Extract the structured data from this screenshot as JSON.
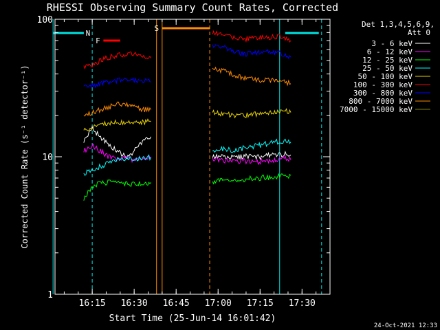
{
  "chart_data": {
    "type": "line",
    "title": "RHESSI Observing Summary Count Rates, Corrected",
    "xlabel": "Start Time (25-Jun-14 16:01:42)",
    "ylabel": "Corrected Count Rate (s⁻¹ detector⁻¹)",
    "y_scale": "log",
    "ylim": [
      1,
      100
    ],
    "xlim": [
      "16:01:42",
      "17:40:00"
    ],
    "x_ticks": [
      "16:15",
      "16:30",
      "16:45",
      "17:00",
      "17:15",
      "17:30"
    ],
    "y_ticks": [
      "1",
      "10",
      "100"
    ],
    "grid": false,
    "legend_position": "top-right",
    "legend_header": [
      "Det 1,3,4,5,6,9,",
      "Att 0"
    ],
    "timestamp": "24-Oct-2021 12:33",
    "flags": [
      {
        "label": "N",
        "color": "#00e5e5",
        "intervals": [
          [
            "16:01",
            "16:12"
          ],
          [
            "17:24",
            "17:36"
          ]
        ]
      },
      {
        "label": "F",
        "color": "#ff0000",
        "intervals": [
          [
            "16:19",
            "16:25"
          ]
        ]
      },
      {
        "label": "S",
        "color": "#ff8c00",
        "intervals": [
          [
            "16:40",
            "16:57"
          ]
        ]
      }
    ],
    "vlines": [
      {
        "time": "16:01",
        "color": "#00e5e5",
        "style": "solid"
      },
      {
        "time": "16:15",
        "color": "#00e5e5",
        "style": "dashed"
      },
      {
        "time": "16:38",
        "color": "#ff8c00",
        "style": "solid"
      },
      {
        "time": "16:40",
        "color": "#ff8c00",
        "style": "solid"
      },
      {
        "time": "16:57",
        "color": "#ff8c00",
        "style": "dashed"
      },
      {
        "time": "17:22",
        "color": "#00e5e5",
        "style": "solid"
      },
      {
        "time": "17:37",
        "color": "#00e5e5",
        "style": "dashed"
      }
    ],
    "series": [
      {
        "name": "3 - 6 keV",
        "color": "#ffffff",
        "segments": [
          {
            "x": [
              "16:12",
              "16:15",
              "16:18",
              "16:21",
              "16:24",
              "16:27",
              "16:30",
              "16:33",
              "16:36"
            ],
            "y": [
              13,
              16,
              14,
              12,
              11,
              10,
              11,
              13,
              14
            ]
          },
          {
            "x": [
              "16:58",
              "17:02",
              "17:06",
              "17:10",
              "17:14",
              "17:18",
              "17:22",
              "17:24",
              "17:26"
            ],
            "y": [
              10,
              10,
              9.8,
              10.2,
              9.9,
              10.2,
              10.3,
              10.6,
              10.3
            ]
          }
        ]
      },
      {
        "name": "6 - 12 keV",
        "color": "#ff00ff",
        "segments": [
          {
            "x": [
              "16:12",
              "16:15",
              "16:18",
              "16:21",
              "16:24",
              "16:27",
              "16:30",
              "16:33",
              "16:36"
            ],
            "y": [
              11,
              12,
              11,
              10,
              9.5,
              9.8,
              9.5,
              9.6,
              10
            ]
          },
          {
            "x": [
              "16:58",
              "17:02",
              "17:06",
              "17:10",
              "17:14",
              "17:18",
              "17:22",
              "17:24",
              "17:26"
            ],
            "y": [
              9.5,
              9.4,
              9.2,
              9.3,
              9.2,
              9.4,
              9.5,
              9.8,
              9.5
            ]
          }
        ]
      },
      {
        "name": "12 - 25 keV",
        "color": "#00ff00",
        "segments": [
          {
            "x": [
              "16:12",
              "16:15",
              "16:18",
              "16:21",
              "16:24",
              "16:27",
              "16:30",
              "16:33",
              "16:36"
            ],
            "y": [
              5,
              6,
              6.5,
              6.5,
              6.4,
              6.4,
              6.3,
              6.4,
              6.5
            ]
          },
          {
            "x": [
              "16:58",
              "17:02",
              "17:06",
              "17:10",
              "17:14",
              "17:18",
              "17:22",
              "17:24",
              "17:26"
            ],
            "y": [
              6.6,
              6.7,
              6.6,
              6.9,
              7,
              7.1,
              7.2,
              7.2,
              7.3
            ]
          }
        ]
      },
      {
        "name": "25 - 50 keV",
        "color": "#00ffff",
        "segments": [
          {
            "x": [
              "16:12",
              "16:15",
              "16:18",
              "16:21",
              "16:24",
              "16:27",
              "16:30",
              "16:33",
              "16:36"
            ],
            "y": [
              7.5,
              8,
              8.5,
              9,
              9.5,
              9.6,
              9.7,
              9.8,
              9.9
            ]
          },
          {
            "x": [
              "16:58",
              "17:02",
              "17:06",
              "17:10",
              "17:14",
              "17:18",
              "17:22",
              "17:24",
              "17:26"
            ],
            "y": [
              11,
              11.5,
              11,
              11.8,
              12,
              12.5,
              13,
              13.2,
              12.8
            ]
          }
        ]
      },
      {
        "name": "50 - 100 keV",
        "color": "#e5d000",
        "segments": [
          {
            "x": [
              "16:12",
              "16:15",
              "16:18",
              "16:21",
              "16:24",
              "16:27",
              "16:30",
              "16:33",
              "16:36"
            ],
            "y": [
              15.5,
              16.5,
              17,
              17.5,
              17.8,
              18,
              18,
              18,
              18
            ]
          },
          {
            "x": [
              "16:58",
              "17:02",
              "17:06",
              "17:10",
              "17:14",
              "17:18",
              "17:22",
              "17:24",
              "17:26"
            ],
            "y": [
              21,
              20.5,
              20,
              20,
              20.5,
              21,
              21.5,
              21.5,
              21
            ]
          }
        ]
      },
      {
        "name": "100 - 300 keV",
        "color": "#ff0000",
        "segments": [
          {
            "x": [
              "16:12",
              "16:15",
              "16:18",
              "16:21",
              "16:24",
              "16:27",
              "16:30",
              "16:33",
              "16:36"
            ],
            "y": [
              45,
              47,
              50,
              53,
              55,
              56,
              56,
              53,
              52
            ]
          },
          {
            "x": [
              "16:58",
              "17:02",
              "17:06",
              "17:10",
              "17:14",
              "17:18",
              "17:22",
              "17:24",
              "17:26"
            ],
            "y": [
              80,
              76,
              73,
              72,
              73,
              74,
              75,
              72,
              70
            ]
          }
        ]
      },
      {
        "name": "300 - 800 keV",
        "color": "#0000ff",
        "segments": [
          {
            "x": [
              "16:12",
              "16:15",
              "16:18",
              "16:21",
              "16:24",
              "16:27",
              "16:30",
              "16:33",
              "16:36"
            ],
            "y": [
              32,
              33,
              34,
              35,
              36,
              36,
              36,
              36,
              35
            ]
          },
          {
            "x": [
              "16:58",
              "17:02",
              "17:06",
              "17:10",
              "17:14",
              "17:18",
              "17:22",
              "17:24",
              "17:26"
            ],
            "y": [
              65,
              62,
              58,
              56,
              57,
              58,
              57,
              55,
              53
            ]
          }
        ]
      },
      {
        "name": "800 - 7000 keV",
        "color": "#ff8c00",
        "segments": [
          {
            "x": [
              "16:12",
              "16:15",
              "16:18",
              "16:21",
              "16:24",
              "16:27",
              "16:30",
              "16:33",
              "16:36"
            ],
            "y": [
              20,
              21,
              22,
              23,
              24,
              24,
              23,
              22,
              22
            ]
          },
          {
            "x": [
              "16:58",
              "17:02",
              "17:06",
              "17:10",
              "17:14",
              "17:18",
              "17:22",
              "17:24",
              "17:26"
            ],
            "y": [
              45,
              42,
              39,
              37,
              36,
              36,
              36,
              35,
              34
            ]
          }
        ]
      },
      {
        "name": "7000 - 15000 keV",
        "color": "#808000",
        "segments": []
      }
    ]
  }
}
